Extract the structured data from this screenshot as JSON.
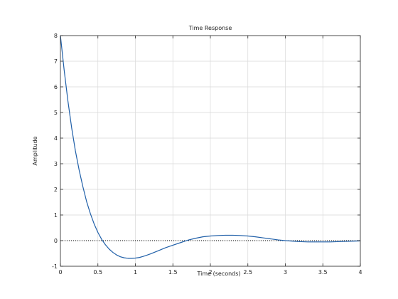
{
  "chart_data": {
    "type": "line",
    "title": "Time Response",
    "xlabel": "Time (seconds)",
    "ylabel": "Amplitude",
    "xlim": [
      0,
      4
    ],
    "ylim": [
      -1,
      8
    ],
    "xticks": [
      0,
      0.5,
      1,
      1.5,
      2,
      2.5,
      3,
      3.5,
      4
    ],
    "yticks": [
      -1,
      0,
      1,
      2,
      3,
      4,
      5,
      6,
      7,
      8
    ],
    "xtick_labels": [
      "0",
      "0.5",
      "1",
      "1.5",
      "2",
      "2.5",
      "3",
      "3.5",
      "4"
    ],
    "ytick_labels": [
      "-1",
      "0",
      "1",
      "2",
      "3",
      "4",
      "5",
      "6",
      "7",
      "8"
    ],
    "grid": true,
    "reference_line": {
      "y": 0,
      "style": "dotted"
    },
    "series": [
      {
        "color": "#1f5fa8",
        "x": [
          0,
          0.05,
          0.1,
          0.15,
          0.2,
          0.25,
          0.3,
          0.35,
          0.4,
          0.45,
          0.5,
          0.55,
          0.6,
          0.65,
          0.7,
          0.75,
          0.8,
          0.85,
          0.9,
          0.95,
          1.0,
          1.05,
          1.1,
          1.15,
          1.2,
          1.3,
          1.4,
          1.5,
          1.6,
          1.7,
          1.8,
          1.9,
          2.0,
          2.1,
          2.2,
          2.3,
          2.4,
          2.5,
          2.6,
          2.7,
          2.8,
          2.9,
          3.0,
          3.1,
          3.2,
          3.3,
          3.4,
          3.5,
          3.6,
          3.7,
          3.8,
          3.9,
          4.0
        ],
        "y": [
          8.0,
          6.65,
          5.45,
          4.4,
          3.5,
          2.75,
          2.1,
          1.52,
          1.05,
          0.65,
          0.32,
          0.05,
          -0.16,
          -0.33,
          -0.46,
          -0.56,
          -0.63,
          -0.67,
          -0.69,
          -0.69,
          -0.68,
          -0.66,
          -0.62,
          -0.57,
          -0.52,
          -0.4,
          -0.28,
          -0.18,
          -0.08,
          0.02,
          0.09,
          0.15,
          0.18,
          0.2,
          0.21,
          0.21,
          0.2,
          0.18,
          0.15,
          0.11,
          0.07,
          0.03,
          0.0,
          -0.02,
          -0.04,
          -0.05,
          -0.05,
          -0.05,
          -0.05,
          -0.04,
          -0.03,
          -0.02,
          -0.01
        ]
      }
    ]
  },
  "colors": {
    "line": "#1f5fa8",
    "grid": "#d9d9d9",
    "axis": "#262626"
  }
}
